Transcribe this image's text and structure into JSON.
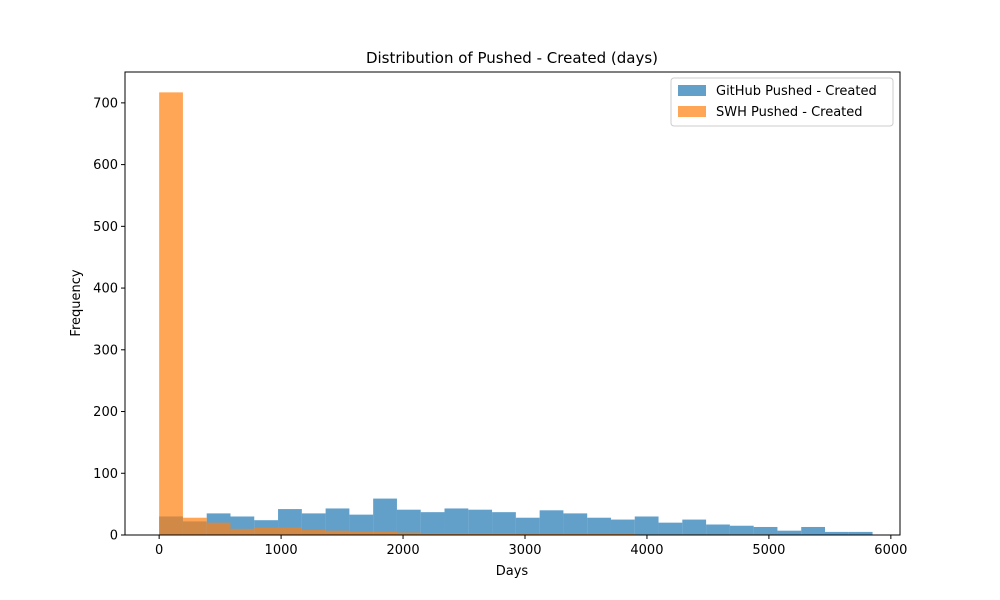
{
  "chart_data": {
    "type": "bar",
    "title": "Distribution of Pushed - Created (days)",
    "xlabel": "Days",
    "ylabel": "Frequency",
    "xlim": [
      -280,
      6075
    ],
    "ylim": [
      0,
      750
    ],
    "xticks": [
      0,
      1000,
      2000,
      3000,
      4000,
      5000,
      6000
    ],
    "yticks": [
      0,
      100,
      200,
      300,
      400,
      500,
      600,
      700
    ],
    "legend_position": "top-right",
    "grid": false,
    "series": [
      {
        "name": "GitHub Pushed - Created",
        "color": "#1f77b4",
        "alpha": 0.7,
        "bin_start": 0,
        "bin_width": 195,
        "values": [
          30,
          22,
          35,
          30,
          24,
          42,
          35,
          43,
          33,
          59,
          41,
          37,
          43,
          41,
          37,
          28,
          40,
          35,
          28,
          25,
          30,
          20,
          25,
          17,
          15,
          13,
          7,
          13,
          5,
          5
        ]
      },
      {
        "name": "SWH Pushed - Created",
        "color": "#ff7f0e",
        "alpha": 0.7,
        "bin_start": 0,
        "bin_width": 195,
        "values": [
          717,
          28,
          20,
          10,
          12,
          12,
          8,
          7,
          5,
          5,
          4,
          3,
          3,
          3,
          3,
          2,
          2,
          2,
          2,
          2,
          1,
          1,
          1,
          1,
          1,
          1,
          0,
          0,
          0,
          0
        ]
      }
    ]
  }
}
